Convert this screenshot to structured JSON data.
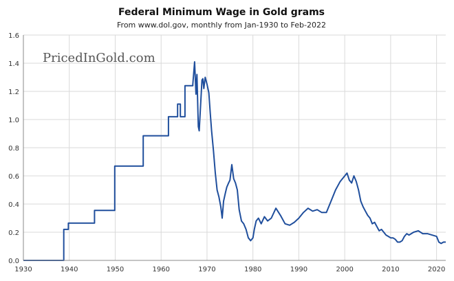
{
  "chart_data": {
    "type": "line",
    "title": "Federal Minimum Wage in Gold grams",
    "subtitle": "From www.dol.gov, monthly from Jan-1930 to Feb-2022",
    "watermark": "PricedInGold.com",
    "xlabel": "",
    "ylabel": "",
    "xlim": [
      1930,
      2022
    ],
    "ylim": [
      0,
      1.6
    ],
    "x_ticks": [
      1930,
      1940,
      1950,
      1960,
      1970,
      1980,
      1990,
      2000,
      2010,
      2020
    ],
    "y_ticks": [
      "0.0",
      "0.2",
      "0.4",
      "0.6",
      "0.8",
      "1.0",
      "1.2",
      "1.4",
      "1.6"
    ],
    "grid": true,
    "series_color": "#1f4e9c",
    "series": [
      {
        "name": "",
        "x": [
          1930,
          1938.8,
          1938.8,
          1939.8,
          1939.8,
          1945.5,
          1945.5,
          1949.9,
          1949.9,
          1956.1,
          1956.1,
          1961.6,
          1961.6,
          1963.6,
          1963.6,
          1964.2,
          1964.2,
          1965.2,
          1965.2,
          1966.9,
          1966.9,
          1967.3,
          1967.6,
          1967.8,
          1968.1,
          1968.3,
          1968.6,
          1968.9,
          1969.1,
          1969.3,
          1969.6,
          1970.0,
          1970.4,
          1970.7,
          1971.0,
          1971.4,
          1971.8,
          1972.2,
          1972.6,
          1973.0,
          1973.3,
          1973.6,
          1974.0,
          1974.3,
          1974.7,
          1975.0,
          1975.4,
          1975.8,
          1976.2,
          1976.6,
          1977.0,
          1977.5,
          1978.0,
          1978.5,
          1979.0,
          1979.5,
          1980.0,
          1980.3,
          1980.7,
          1981.2,
          1981.8,
          1982.5,
          1983.2,
          1984.0,
          1985.0,
          1986.0,
          1987.0,
          1988.0,
          1989.0,
          1990.0,
          1991.0,
          1992.0,
          1993.0,
          1994.0,
          1995.0,
          1996.0,
          1997.0,
          1998.0,
          1999.0,
          2000.0,
          2000.5,
          2001.0,
          2001.5,
          2002.0,
          2002.5,
          2003.0,
          2003.5,
          2004.0,
          2004.5,
          2005.0,
          2005.5,
          2006.0,
          2006.5,
          2007.0,
          2007.5,
          2008.0,
          2008.5,
          2009.0,
          2009.5,
          2010.0,
          2010.5,
          2011.0,
          2011.5,
          2012.0,
          2012.5,
          2013.0,
          2013.5,
          2014.0,
          2015.0,
          2016.0,
          2017.0,
          2018.0,
          2019.0,
          2020.0,
          2020.5,
          2021.0,
          2021.5,
          2022.0
        ],
        "values": [
          0,
          0,
          0.22,
          0.22,
          0.265,
          0.265,
          0.355,
          0.355,
          0.67,
          0.67,
          0.885,
          0.885,
          1.02,
          1.02,
          1.11,
          1.11,
          1.02,
          1.02,
          1.24,
          1.24,
          1.25,
          1.41,
          1.18,
          1.32,
          0.95,
          0.92,
          1.1,
          1.28,
          1.29,
          1.22,
          1.3,
          1.25,
          1.19,
          1.05,
          0.92,
          0.78,
          0.62,
          0.5,
          0.45,
          0.38,
          0.3,
          0.42,
          0.48,
          0.52,
          0.55,
          0.57,
          0.68,
          0.58,
          0.55,
          0.5,
          0.36,
          0.28,
          0.26,
          0.22,
          0.16,
          0.14,
          0.16,
          0.22,
          0.28,
          0.3,
          0.26,
          0.31,
          0.28,
          0.3,
          0.37,
          0.32,
          0.26,
          0.25,
          0.27,
          0.3,
          0.34,
          0.37,
          0.35,
          0.36,
          0.34,
          0.34,
          0.42,
          0.5,
          0.56,
          0.6,
          0.62,
          0.57,
          0.55,
          0.6,
          0.56,
          0.5,
          0.42,
          0.38,
          0.35,
          0.32,
          0.3,
          0.26,
          0.27,
          0.24,
          0.21,
          0.22,
          0.2,
          0.18,
          0.17,
          0.16,
          0.16,
          0.15,
          0.13,
          0.13,
          0.14,
          0.17,
          0.19,
          0.18,
          0.2,
          0.21,
          0.19,
          0.19,
          0.18,
          0.17,
          0.13,
          0.12,
          0.13,
          0.13
        ]
      }
    ]
  }
}
